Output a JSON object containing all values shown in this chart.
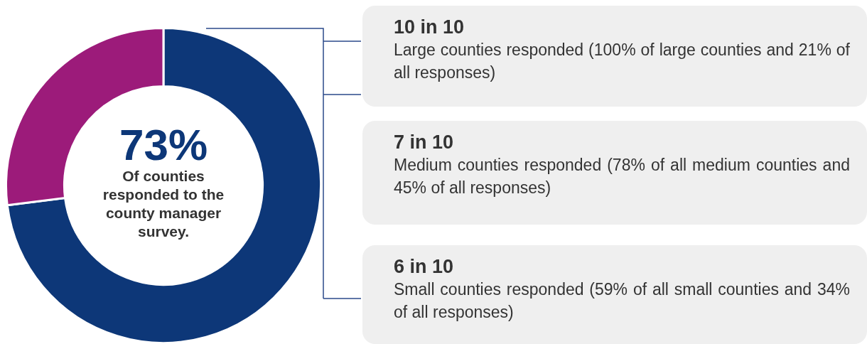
{
  "chart_data": [
    {
      "type": "donut",
      "categories": [
        null,
        null
      ],
      "values": [
        73,
        27
      ],
      "colors": [
        "#0d3778",
        "#9c1b7a"
      ],
      "value_labels": [
        "73%",
        null
      ],
      "annotations": [
        "Of counties responded to the county manager survey."
      ]
    },
    {
      "type": "other",
      "annotations": [
        "10 in 10",
        "Large counties responded (100% of large counties and 21% of all responses)",
        "7 in 10",
        "Medium counties responded (78% of all medium counties and 45% of all responses)",
        "6 in 10",
        "Small counties responded (59% of all small counties and 34% of all responses)"
      ]
    }
  ]
}
